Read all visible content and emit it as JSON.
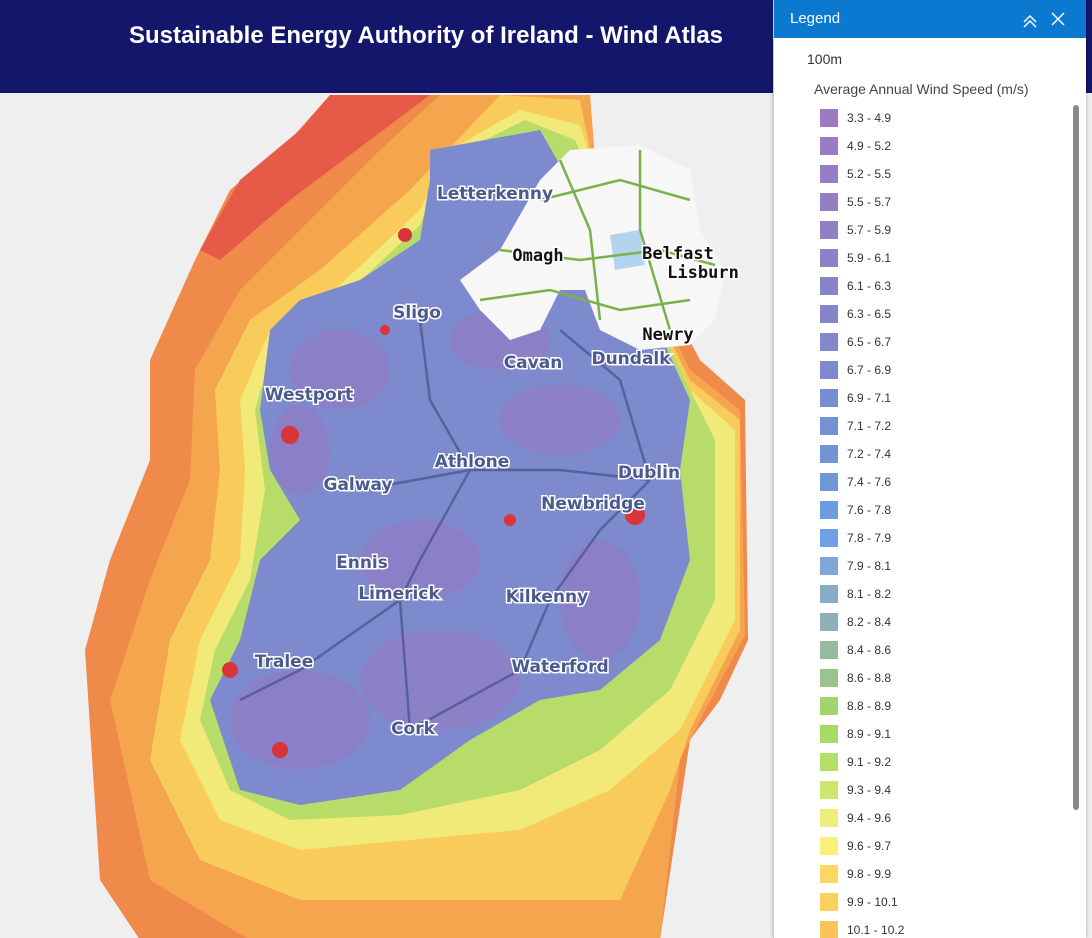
{
  "header": {
    "title": "Sustainable Energy Authority of Ireland - Wind Atlas"
  },
  "legend": {
    "title": "Legend",
    "layer": "100m",
    "subtitle": "Average Annual Wind Speed (m/s)",
    "items": [
      {
        "label": "3.3 - 4.9",
        "color": "#9d7bc4"
      },
      {
        "label": "4.9 - 5.2",
        "color": "#9a7cc3"
      },
      {
        "label": "5.2 - 5.5",
        "color": "#977dc4"
      },
      {
        "label": "5.5 - 5.7",
        "color": "#947fc5"
      },
      {
        "label": "5.7 - 5.9",
        "color": "#9080c6"
      },
      {
        "label": "5.9 - 6.1",
        "color": "#8c82c8"
      },
      {
        "label": "6.1 - 6.3",
        "color": "#8884c9"
      },
      {
        "label": "6.3 - 6.5",
        "color": "#8586ca"
      },
      {
        "label": "6.5 - 6.7",
        "color": "#8188cc"
      },
      {
        "label": "6.7 - 6.9",
        "color": "#7d8bce"
      },
      {
        "label": "6.9 - 7.1",
        "color": "#798ed0"
      },
      {
        "label": "7.1 - 7.2",
        "color": "#7691d2"
      },
      {
        "label": "7.2 - 7.4",
        "color": "#7394d4"
      },
      {
        "label": "7.4 - 7.6",
        "color": "#7098d6"
      },
      {
        "label": "7.6 - 7.8",
        "color": "#6d9be0"
      },
      {
        "label": "7.8 - 7.9",
        "color": "#6ea0e6"
      },
      {
        "label": "7.9 - 8.1",
        "color": "#7fa6d8"
      },
      {
        "label": "8.1 - 8.2",
        "color": "#88abc6"
      },
      {
        "label": "8.2 - 8.4",
        "color": "#8fb0b6"
      },
      {
        "label": "8.4 - 8.6",
        "color": "#95bb9e"
      },
      {
        "label": "8.6 - 8.8",
        "color": "#99c48e"
      },
      {
        "label": "8.8 - 8.9",
        "color": "#a2d56d"
      },
      {
        "label": "8.9 - 9.1",
        "color": "#a8da66"
      },
      {
        "label": "9.1 - 9.2",
        "color": "#b5de68"
      },
      {
        "label": "9.3 - 9.4",
        "color": "#cfe66e"
      },
      {
        "label": "9.4 - 9.6",
        "color": "#eeee7a"
      },
      {
        "label": "9.6 - 9.7",
        "color": "#f8f17a"
      },
      {
        "label": "9.8 - 9.9",
        "color": "#fbd865"
      },
      {
        "label": "9.9 - 10.1",
        "color": "#fccf5f"
      },
      {
        "label": "10.1 - 10.2",
        "color": "#fbc359"
      }
    ]
  },
  "map": {
    "places": [
      "Letterkenny",
      "Omagh",
      "Belfast",
      "Lisburn",
      "Newry",
      "Sligo",
      "Cavan",
      "Dundalk",
      "Westport",
      "Athlone",
      "Dublin",
      "Galway",
      "Newbridge",
      "Ennis",
      "Limerick",
      "Kilkenny",
      "Tralee",
      "Waterford",
      "Cork"
    ]
  }
}
